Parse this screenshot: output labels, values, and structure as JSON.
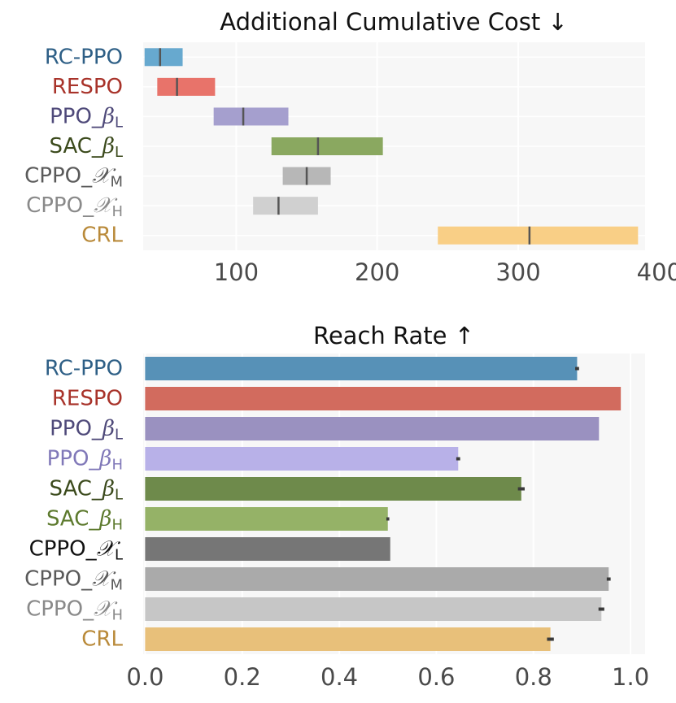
{
  "chart_data": [
    {
      "type": "box",
      "title": "Additional Cumulative Cost ↓",
      "xlabel": "",
      "ylabel": "",
      "xlim": [
        34,
        390
      ],
      "xticks": [
        100,
        200,
        300,
        400
      ],
      "grid": true,
      "categories": [
        {
          "base": "RC-PPO",
          "sym": "",
          "sub": "",
          "color": "#2e5f86"
        },
        {
          "base": "RESPO",
          "sym": "",
          "sub": "",
          "color": "#a8332a"
        },
        {
          "base": "PPO_",
          "sym": "β",
          "sub": "L",
          "color": "#4f4a7a"
        },
        {
          "base": "SAC_",
          "sym": "β",
          "sub": "L",
          "color": "#3b4a1c"
        },
        {
          "base": "CPPO_",
          "sym": "𝒳",
          "sub": "M",
          "color": "#5a5a5a"
        },
        {
          "base": "CPPO_",
          "sym": "𝒳",
          "sub": "H",
          "color": "#8a8a8a"
        },
        {
          "base": "CRL",
          "sym": "",
          "sub": "",
          "color": "#b98a3a"
        }
      ],
      "boxes": [
        {
          "low": 35,
          "high": 62,
          "median": 46,
          "color": "#67a9cf"
        },
        {
          "low": 44,
          "high": 85,
          "median": 58,
          "color": "#e8736a"
        },
        {
          "low": 84,
          "high": 137,
          "median": 105,
          "color": "#a59fce"
        },
        {
          "low": 125,
          "high": 204,
          "median": 158,
          "color": "#8aa860"
        },
        {
          "low": 133,
          "high": 167,
          "median": 150,
          "color": "#b7b7b7"
        },
        {
          "low": 112,
          "high": 158,
          "median": 130,
          "color": "#d0d0d0"
        },
        {
          "low": 243,
          "high": 385,
          "median": 308,
          "color": "#f9cf86"
        }
      ]
    },
    {
      "type": "bar",
      "orientation": "horizontal",
      "title": "Reach Rate ↑",
      "xlabel": "",
      "ylabel": "",
      "xlim": [
        -0.004,
        1.03
      ],
      "xticks": [
        "0.0",
        "0.2",
        "0.4",
        "0.6",
        "0.8",
        "1.0"
      ],
      "grid": true,
      "categories": [
        {
          "base": "RC-PPO",
          "sym": "",
          "sub": "",
          "color": "#2e5f86"
        },
        {
          "base": "RESPO",
          "sym": "",
          "sub": "",
          "color": "#a8332a"
        },
        {
          "base": "PPO_",
          "sym": "β",
          "sub": "L",
          "color": "#4f4a7a"
        },
        {
          "base": "PPO_",
          "sym": "β",
          "sub": "H",
          "color": "#8078b8"
        },
        {
          "base": "SAC_",
          "sym": "β",
          "sub": "L",
          "color": "#3b4a1c"
        },
        {
          "base": "SAC_",
          "sym": "β",
          "sub": "H",
          "color": "#5d7a2e"
        },
        {
          "base": "CPPO_",
          "sym": "𝒳",
          "sub": "L",
          "color": "#111111"
        },
        {
          "base": "CPPO_",
          "sym": "𝒳",
          "sub": "M",
          "color": "#5a5a5a"
        },
        {
          "base": "CPPO_",
          "sym": "𝒳",
          "sub": "H",
          "color": "#8a8a8a"
        },
        {
          "base": "CRL",
          "sym": "",
          "sub": "",
          "color": "#b98a3a"
        }
      ],
      "values": [
        0.89,
        0.98,
        0.935,
        0.645,
        0.775,
        0.5,
        0.505,
        0.955,
        0.94,
        0.835
      ],
      "errors": [
        0.004,
        0.0,
        0.0,
        0.004,
        0.007,
        0.003,
        0.0,
        0.004,
        0.006,
        0.007
      ],
      "colors": [
        "#5791b7",
        "#d26b5e",
        "#9a91c0",
        "#b8b1e8",
        "#6e8a4b",
        "#95b267",
        "#767676",
        "#aaaaaa",
        "#c6c6c6",
        "#e8c07a"
      ]
    }
  ]
}
